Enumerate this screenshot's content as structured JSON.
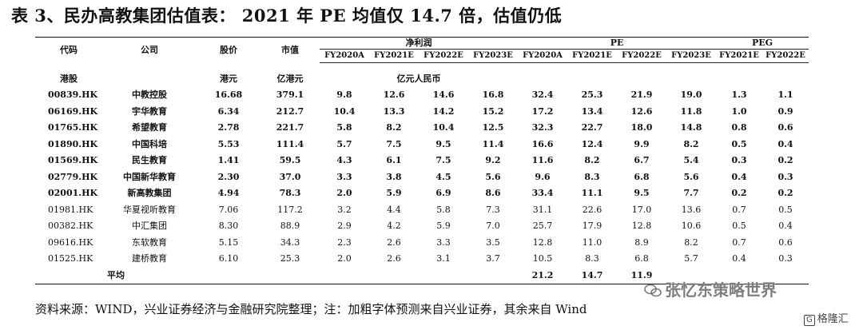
{
  "title": "表 3、民办高教集团估值表：  2021 年 PE 均值仅 14.7 倍，估值仍低",
  "table": {
    "group_headers": {
      "net_profit": "净利润",
      "pe": "PE",
      "peg": "PEG"
    },
    "headers": {
      "code": "代码",
      "company": "公司",
      "price": "股价",
      "market_cap": "市值",
      "np": [
        "FY2020A",
        "FY2021E",
        "FY2022E",
        "FY2023E"
      ],
      "pe": [
        "FY2020A",
        "FY2021E",
        "FY2022E",
        "FY2023E"
      ],
      "peg": [
        "FY2021E",
        "FY2022E"
      ]
    },
    "units": {
      "market": "港股",
      "price": "港元",
      "market_cap": "亿港元",
      "np": "亿元人民币"
    },
    "rows": [
      {
        "code": "00839.HK",
        "company": "中教控股",
        "price": "16.68",
        "cap": "379.1",
        "np": [
          "9.8",
          "12.6",
          "14.6",
          "16.8"
        ],
        "pe": [
          "32.4",
          "25.3",
          "21.9",
          "19.0"
        ],
        "peg": [
          "1.3",
          "1.1"
        ]
      },
      {
        "code": "06169.HK",
        "company": "宇华教育",
        "price": "6.34",
        "cap": "212.7",
        "np": [
          "10.4",
          "13.3",
          "14.2",
          "15.2"
        ],
        "pe": [
          "17.2",
          "13.4",
          "12.6",
          "11.8"
        ],
        "peg": [
          "1.0",
          "0.9"
        ]
      },
      {
        "code": "01765.HK",
        "company": "希望教育",
        "price": "2.78",
        "cap": "221.7",
        "np": [
          "5.8",
          "8.2",
          "10.4",
          "12.5"
        ],
        "pe": [
          "32.3",
          "22.7",
          "18.0",
          "14.8"
        ],
        "peg": [
          "0.8",
          "0.6"
        ]
      },
      {
        "code": "01890.HK",
        "company": "中国科培",
        "price": "5.53",
        "cap": "111.4",
        "np": [
          "5.7",
          "7.5",
          "9.5",
          "11.4"
        ],
        "pe": [
          "16.6",
          "12.4",
          "9.9",
          "8.2"
        ],
        "peg": [
          "0.5",
          "0.4"
        ]
      },
      {
        "code": "01569.HK",
        "company": "民生教育",
        "price": "1.41",
        "cap": "59.5",
        "np": [
          "4.3",
          "6.1",
          "7.5",
          "9.2"
        ],
        "pe": [
          "11.6",
          "8.2",
          "6.7",
          "5.4"
        ],
        "peg": [
          "0.3",
          "0.2"
        ]
      },
      {
        "code": "02779.HK",
        "company": "中国新华教育",
        "price": "2.30",
        "cap": "37.0",
        "np": [
          "3.3",
          "3.8",
          "4.5",
          "5.6"
        ],
        "pe": [
          "9.6",
          "8.3",
          "6.8",
          "5.6"
        ],
        "peg": [
          "0.4",
          "0.3"
        ]
      },
      {
        "code": "02001.HK",
        "company": "新高教集团",
        "price": "4.94",
        "cap": "78.3",
        "np": [
          "2.0",
          "5.9",
          "6.9",
          "8.6"
        ],
        "pe": [
          "33.4",
          "11.1",
          "9.5",
          "7.7"
        ],
        "peg": [
          "0.2",
          "0.2"
        ]
      },
      {
        "code": "01981.HK",
        "company": "华夏视听教育",
        "price": "7.06",
        "cap": "117.2",
        "np": [
          "3.2",
          "4.4",
          "5.8",
          "7.3"
        ],
        "pe": [
          "31.1",
          "22.6",
          "17.0",
          "13.6"
        ],
        "peg": [
          "0.7",
          "0.5"
        ]
      },
      {
        "code": "00382.HK",
        "company": "中汇集团",
        "price": "8.30",
        "cap": "88.9",
        "np": [
          "2.9",
          "4.2",
          "5.9",
          "7.0"
        ],
        "pe": [
          "25.7",
          "17.9",
          "12.8",
          "10.6"
        ],
        "peg": [
          "0.5",
          "0.4"
        ]
      },
      {
        "code": "09616.HK",
        "company": "东软教育",
        "price": "5.15",
        "cap": "34.3",
        "np": [
          "2.3",
          "2.6",
          "3.3",
          "3.5"
        ],
        "pe": [
          "12.8",
          "11.0",
          "8.9",
          "8.2"
        ],
        "peg": [
          "0.7",
          "0.6"
        ]
      },
      {
        "code": "01525.HK",
        "company": "建桥教育",
        "price": "6.10",
        "cap": "25.3",
        "np": [
          "2.0",
          "2.6",
          "3.1",
          "3.7"
        ],
        "pe": [
          "10.5",
          "8.3",
          "6.8",
          "5.7"
        ],
        "peg": [
          "0.4",
          "0.3"
        ]
      }
    ],
    "average": {
      "label": "平均",
      "pe": [
        "21.2",
        "14.7",
        "11.9"
      ]
    }
  },
  "source_note": "资料来源：WIND，兴业证券经济与金融研究院整理；注：加粗字体预测来自兴业证券，其余来自 Wind",
  "watermark": {
    "text": "张忆东策略世界",
    "icon": "wechat-icon"
  },
  "logo": {
    "box": "G",
    "text": "格隆汇"
  }
}
